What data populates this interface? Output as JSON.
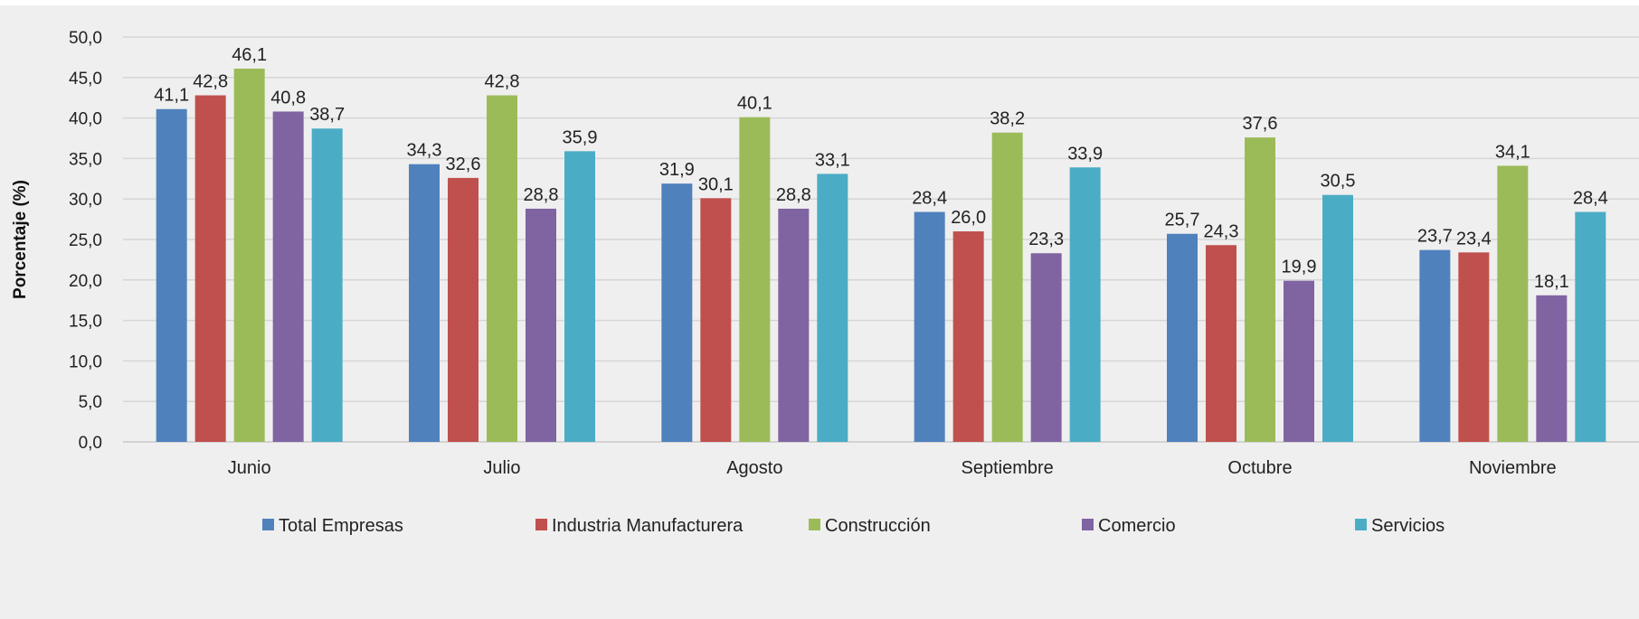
{
  "chart_data": {
    "type": "bar",
    "title": "",
    "xlabel": "",
    "ylabel": "Porcentaje (%)",
    "ylim": [
      0,
      50
    ],
    "yticks": [
      "0,0",
      "5,0",
      "10,0",
      "15,0",
      "20,0",
      "25,0",
      "30,0",
      "35,0",
      "40,0",
      "45,0",
      "50,0"
    ],
    "categories": [
      "Junio",
      "Julio",
      "Agosto",
      "Septiembre",
      "Octubre",
      "Noviembre"
    ],
    "grid": true,
    "legend_position": "bottom",
    "series": [
      {
        "name": "Total Empresas",
        "color": "#4f81bd",
        "values": [
          41.1,
          34.3,
          31.9,
          28.4,
          25.7,
          23.7
        ],
        "labels": [
          "41,1",
          "34,3",
          "31,9",
          "28,4",
          "25,7",
          "23,7"
        ]
      },
      {
        "name": "Industria Manufacturera",
        "color": "#c0504d",
        "values": [
          42.8,
          32.6,
          30.1,
          26.0,
          24.3,
          23.4
        ],
        "labels": [
          "42,8",
          "32,6",
          "30,1",
          "26,0",
          "24,3",
          "23,4"
        ]
      },
      {
        "name": "Construcción",
        "color": "#9bbb59",
        "values": [
          46.1,
          42.8,
          40.1,
          38.2,
          37.6,
          34.1
        ],
        "labels": [
          "46,1",
          "42,8",
          "40,1",
          "38,2",
          "37,6",
          "34,1"
        ]
      },
      {
        "name": "Comercio",
        "color": "#8064a2",
        "values": [
          40.8,
          28.8,
          28.8,
          23.3,
          19.9,
          18.1
        ],
        "labels": [
          "40,8",
          "28,8",
          "28,8",
          "23,3",
          "19,9",
          "18,1"
        ]
      },
      {
        "name": "Servicios",
        "color": "#4bacc6",
        "values": [
          38.7,
          35.9,
          33.1,
          33.9,
          30.5,
          28.4
        ],
        "labels": [
          "38,7",
          "35,9",
          "33,1",
          "33,9",
          "30,5",
          "28,4"
        ]
      }
    ]
  }
}
